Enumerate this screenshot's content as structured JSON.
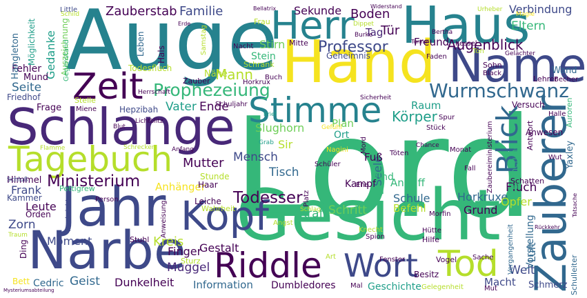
{
  "palette": {
    "yellow": "#f5e31f",
    "lime": "#b5de2b",
    "green": "#6ece58",
    "seagreen": "#35b779",
    "teal": "#1f9e89",
    "cyan": "#26828e",
    "steel": "#31688e",
    "indigo": "#3e4989",
    "violet": "#482878",
    "dark": "#440154",
    "background": "#ffffff"
  },
  "words": [
    {
      "text": "Lord",
      "color": "seagreen"
    },
    {
      "text": "Auge",
      "color": "cyan"
    },
    {
      "text": "Hand",
      "color": "yellow"
    },
    {
      "text": "Gesicht",
      "color": "seagreen"
    },
    {
      "text": "Schlange",
      "color": "violet"
    },
    {
      "text": "Narbe",
      "color": "indigo"
    },
    {
      "text": "Haus",
      "color": "cyan"
    },
    {
      "text": "Jahr",
      "color": "indigo"
    },
    {
      "text": "Name",
      "color": "indigo"
    },
    {
      "text": "Tagebuch",
      "color": "lime"
    },
    {
      "text": "Herr",
      "color": "cyan"
    },
    {
      "text": "Zauberer",
      "color": "steel"
    },
    {
      "text": "Stimme",
      "color": "cyan"
    },
    {
      "text": "Zeit",
      "color": "dark"
    },
    {
      "text": "Kopf",
      "color": "indigo"
    },
    {
      "text": "Riddle",
      "color": "dark"
    },
    {
      "text": "Wort",
      "color": "indigo"
    },
    {
      "text": "Tod",
      "color": "lime"
    },
    {
      "text": "Blick",
      "color": "steel"
    },
    {
      "text": "Wurmschwanz",
      "color": "steel"
    },
    {
      "text": "Prophezeiung",
      "color": "seagreen"
    },
    {
      "text": "Ministerium",
      "color": "dark"
    },
    {
      "text": "Todesser",
      "color": "dark"
    },
    {
      "text": "Professor",
      "color": "indigo"
    },
    {
      "text": "Augenblick",
      "color": "dark"
    },
    {
      "text": "Zauberstab",
      "color": "dark"
    },
    {
      "text": "Familie",
      "color": "indigo"
    },
    {
      "text": "Boden",
      "color": "dark"
    },
    {
      "text": "Verbindung",
      "color": "indigo"
    },
    {
      "text": "Eltern",
      "color": "seagreen"
    },
    {
      "text": "Mann",
      "color": "lime"
    },
    {
      "text": "Körper",
      "color": "teal"
    },
    {
      "text": "Mutter",
      "color": "dark"
    },
    {
      "text": "Seite",
      "color": "steel"
    },
    {
      "text": "Vater",
      "color": "teal"
    },
    {
      "text": "Ende",
      "color": "dark"
    },
    {
      "text": "Kraft",
      "color": "seagreen"
    },
    {
      "text": "Schritt",
      "color": "green"
    },
    {
      "text": "Kreis",
      "color": "lime"
    },
    {
      "text": "Moment",
      "color": "indigo"
    },
    {
      "text": "Frank",
      "color": "indigo"
    },
    {
      "text": "Leute",
      "color": "dark"
    },
    {
      "text": "Zorn",
      "color": "indigo"
    },
    {
      "text": "Geist",
      "color": "steel"
    },
    {
      "text": "Dunkelheit",
      "color": "dark"
    },
    {
      "text": "Muggel",
      "color": "violet"
    },
    {
      "text": "Finger",
      "color": "dark"
    },
    {
      "text": "Gestalt",
      "color": "dark"
    },
    {
      "text": "Mensch",
      "color": "indigo"
    },
    {
      "text": "Tisch",
      "color": "steel"
    },
    {
      "text": "Sir",
      "color": "lime"
    },
    {
      "text": "Slughorn",
      "color": "green"
    },
    {
      "text": "Raum",
      "color": "teal"
    },
    {
      "text": "Fluch",
      "color": "dark"
    },
    {
      "text": "Horkruxe",
      "color": "steel"
    },
    {
      "text": "Schule",
      "color": "steel"
    },
    {
      "text": "Angriff",
      "color": "seagreen"
    },
    {
      "text": "Grund",
      "color": "dark"
    },
    {
      "text": "Opfer",
      "color": "lime"
    },
    {
      "text": "Befehl",
      "color": "lime"
    },
    {
      "text": "Anhänger",
      "color": "yellow"
    },
    {
      "text": "Gedanke",
      "color": "teal"
    },
    {
      "text": "Stirn",
      "color": "green"
    },
    {
      "text": "Tür",
      "color": "dark"
    },
    {
      "text": "Sekunde",
      "color": "dark"
    },
    {
      "text": "Tag",
      "color": "violet"
    },
    {
      "text": "Freund",
      "color": "dark"
    },
    {
      "text": "Stein",
      "color": "seagreen"
    },
    {
      "text": "Fehler",
      "color": "dark"
    },
    {
      "text": "Frage",
      "color": "dark"
    },
    {
      "text": "Mund",
      "color": "dark"
    },
    {
      "text": "Macht",
      "color": "indigo"
    },
    {
      "text": "Welt",
      "color": "indigo"
    },
    {
      "text": "Information",
      "color": "steel"
    },
    {
      "text": "Dumbledores",
      "color": "dark"
    },
    {
      "text": "Geschichte",
      "color": "teal"
    },
    {
      "text": "Cedric",
      "color": "steel"
    },
    {
      "text": "Bett",
      "color": "yellow"
    },
    {
      "text": "Ding",
      "color": "dark"
    },
    {
      "text": "Orden",
      "color": "dark"
    },
    {
      "text": "Himmel",
      "color": "dark"
    },
    {
      "text": "Seele",
      "color": "steel"
    },
    {
      "text": "Fuß",
      "color": "dark"
    },
    {
      "text": "Kind",
      "color": "seagreen"
    },
    {
      "text": "Kampf",
      "color": "dark"
    },
    {
      "text": "Plan",
      "color": "green"
    },
    {
      "text": "Ort",
      "color": "teal"
    },
    {
      "text": "Hangleton",
      "color": "steel"
    },
    {
      "text": "Möglichkeit",
      "color": "teal"
    },
    {
      "text": "Auszeichnung",
      "color": "green"
    },
    {
      "text": "Gegenstand",
      "color": "seagreen"
    },
    {
      "text": "Friedhof",
      "color": "indigo"
    },
    {
      "text": "Todesfluch",
      "color": "lime"
    },
    {
      "text": "Hals",
      "color": "dark"
    },
    {
      "text": "Leben",
      "color": "steel"
    },
    {
      "text": "Schrank",
      "color": "lime"
    },
    {
      "text": "Geheimnis",
      "color": "indigo"
    },
    {
      "text": "Mitte",
      "color": "dark"
    },
    {
      "text": "Frau",
      "color": "lime"
    },
    {
      "text": "Nacht",
      "color": "dark"
    },
    {
      "text": "Nähe",
      "color": "lime"
    },
    {
      "text": "Zauber",
      "color": "dark"
    },
    {
      "text": "Horkrux",
      "color": "dark"
    },
    {
      "text": "Buch",
      "color": "dark"
    },
    {
      "text": "Herrschaft",
      "color": "dark"
    },
    {
      "text": "Stelle",
      "color": "lime"
    },
    {
      "text": "Miene",
      "color": "dark"
    },
    {
      "text": "Hepzibah",
      "color": "indigo"
    },
    {
      "text": "Lichtblitz",
      "color": "dark"
    },
    {
      "text": "Schuljahr",
      "color": "dark"
    },
    {
      "text": "Blut",
      "color": "dark"
    },
    {
      "text": "Gefühl",
      "color": "yellow"
    },
    {
      "text": "Spur",
      "color": "dark"
    },
    {
      "text": "Stück",
      "color": "dark"
    },
    {
      "text": "Brief",
      "color": "teal"
    },
    {
      "text": "Flamme",
      "color": "lime"
    },
    {
      "text": "Schrecken",
      "color": "lime"
    },
    {
      "text": "Anfang",
      "color": "dark"
    },
    {
      "text": "Grab",
      "color": "teal"
    },
    {
      "text": "Nagini",
      "color": "yellow"
    },
    {
      "text": "Mord",
      "color": "dark"
    },
    {
      "text": "Schüler",
      "color": "dark"
    },
    {
      "text": "Chance",
      "color": "dark"
    },
    {
      "text": "Töten",
      "color": "dark"
    },
    {
      "text": "Monat",
      "color": "dark"
    },
    {
      "text": "Fall",
      "color": "dark"
    },
    {
      "text": "Ehe",
      "color": "dark"
    },
    {
      "text": "Platz",
      "color": "dark"
    },
    {
      "text": "Schlag",
      "color": "lime"
    },
    {
      "text": "Wahrheit",
      "color": "lime"
    },
    {
      "text": "Leiche",
      "color": "dark"
    },
    {
      "text": "Stunde",
      "color": "lime"
    },
    {
      "text": "Haar",
      "color": "dark"
    },
    {
      "text": "Schluß",
      "color": "indigo"
    },
    {
      "text": "Pettigrew",
      "color": "seagreen"
    },
    {
      "text": "Kammer",
      "color": "indigo"
    },
    {
      "text": "Person",
      "color": "dark"
    },
    {
      "text": "Nachricht",
      "color": "indigo"
    },
    {
      "text": "Anweisung",
      "color": "dark"
    },
    {
      "text": "Stuhl",
      "color": "dark"
    },
    {
      "text": "Angst",
      "color": "lime"
    },
    {
      "text": "Knecht",
      "color": "lime"
    },
    {
      "text": "Spion",
      "color": "dark"
    },
    {
      "text": "Art",
      "color": "lime"
    },
    {
      "text": "Fenster",
      "color": "dark"
    },
    {
      "text": "Sturz",
      "color": "lime"
    },
    {
      "text": "Mal",
      "color": "dark"
    },
    {
      "text": "Besitz",
      "color": "dark"
    },
    {
      "text": "Gelegenheit",
      "color": "lime"
    },
    {
      "text": "Mut",
      "color": "dark"
    },
    {
      "text": "Vogel",
      "color": "dark"
    },
    {
      "text": "Sache",
      "color": "dark"
    },
    {
      "text": "Hütte",
      "color": "dark"
    },
    {
      "text": "Hilfe",
      "color": "dark"
    },
    {
      "text": "Morfin",
      "color": "dark"
    },
    {
      "text": "Schmerz",
      "color": "indigo"
    },
    {
      "text": "Vergangenheit",
      "color": "steel"
    },
    {
      "text": "Vorstellung",
      "color": "steel"
    },
    {
      "text": "Schulleiter",
      "color": "steel"
    },
    {
      "text": "Rückkehr",
      "color": "dark"
    },
    {
      "text": "Tatsache",
      "color": "dark"
    },
    {
      "text": "Luft",
      "color": "steel"
    },
    {
      "text": "Anwesen",
      "color": "dark"
    },
    {
      "text": "Versuch",
      "color": "dark"
    },
    {
      "text": "Antwort",
      "color": "dark"
    },
    {
      "text": "Zaubereiministerium",
      "color": "dark"
    },
    {
      "text": "Erinnerung",
      "color": "seagreen"
    },
    {
      "text": "Schatten",
      "color": "dark"
    },
    {
      "text": "Yaxley",
      "color": "steel"
    },
    {
      "text": "Auroren",
      "color": "seagreen"
    },
    {
      "text": "Halle",
      "color": "dark"
    },
    {
      "text": "Wut",
      "color": "dark"
    },
    {
      "text": "Lehrer",
      "color": "dark"
    },
    {
      "text": "Wand",
      "color": "steel"
    },
    {
      "text": "Becher",
      "color": "dark"
    },
    {
      "text": "Sohn",
      "color": "dark"
    },
    {
      "text": "Black",
      "color": "dark"
    },
    {
      "text": "Faden",
      "color": "dark"
    },
    {
      "text": "Kessel",
      "color": "dark"
    },
    {
      "text": "Bertha",
      "color": "dark"
    },
    {
      "text": "Ton",
      "color": "lime"
    },
    {
      "text": "Gelächter",
      "color": "dark"
    },
    {
      "text": "Magie",
      "color": "yellow"
    },
    {
      "text": "Urheber",
      "color": "lime"
    },
    {
      "text": "Tunnel",
      "color": "dark"
    },
    {
      "text": "Burke",
      "color": "dark"
    },
    {
      "text": "Dippet",
      "color": "lime"
    },
    {
      "text": "Widerstand",
      "color": "dark"
    },
    {
      "text": "Bellatrix",
      "color": "dark"
    },
    {
      "text": "Little",
      "color": "indigo"
    },
    {
      "text": "Schild",
      "color": "lime"
    },
    {
      "text": "Erde",
      "color": "dark"
    },
    {
      "text": "Samstag",
      "color": "lime"
    },
    {
      "text": "Sicherheit",
      "color": "dark"
    },
    {
      "text": "Traum",
      "color": "lime"
    },
    {
      "text": "Mysteriumsabteilung",
      "color": "dark"
    }
  ]
}
